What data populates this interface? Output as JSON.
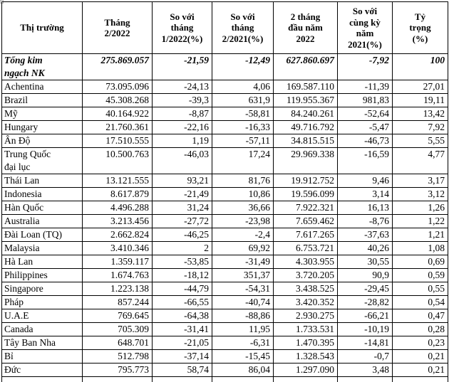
{
  "chart_data": {
    "type": "table",
    "title": "",
    "unit_note_hidden": "",
    "columns": [
      "Thị trường",
      "Tháng\n2/2022",
      "So với\ntháng\n1/2022(%)",
      "So với\ntháng\n2/2021(%)",
      "2 tháng\nđầu năm\n2022",
      "So với\ncùng kỳ\nnăm\n2021(%)",
      "Tỷ\ntrọng\n(%)"
    ],
    "rows": [
      {
        "market": "Tổng kim\nngạch NK",
        "emphasis": true,
        "values": [
          "275.869.057",
          "-21,59",
          "-12,49",
          "627.860.697",
          "-7,92",
          "100"
        ]
      },
      {
        "market": "Achentina",
        "values": [
          "73.095.096",
          "-24,13",
          "4,06",
          "169.587.110",
          "-11,39",
          "27,01"
        ]
      },
      {
        "market": "Brazil",
        "values": [
          "45.308.268",
          "-39,3",
          "631,9",
          "119.955.367",
          "981,83",
          "19,11"
        ]
      },
      {
        "market": "Mỹ",
        "values": [
          "40.164.922",
          "-8,87",
          "-58,81",
          "84.240.261",
          "-52,64",
          "13,42"
        ]
      },
      {
        "market": "Hungary",
        "values": [
          "21.760.361",
          "-22,16",
          "-16,33",
          "49.716.792",
          "-5,47",
          "7,92"
        ]
      },
      {
        "market": "Ân Độ",
        "values": [
          "17.510.555",
          "1,19",
          "-57,11",
          "34.815.515",
          "-46,73",
          "5,55"
        ]
      },
      {
        "market": "Trung Quốc\nđại lục",
        "values": [
          "10.500.763",
          "-46,03",
          "17,24",
          "29.969.338",
          "-16,59",
          "4,77"
        ]
      },
      {
        "market": "Thái Lan",
        "values": [
          "13.121.555",
          "93,21",
          "81,76",
          "19.912.752",
          "9,46",
          "3,17"
        ]
      },
      {
        "market": "Indonesia",
        "values": [
          "8.617.879",
          "-21,49",
          "10,86",
          "19.596.099",
          "3,14",
          "3,12"
        ]
      },
      {
        "market": "Hàn Quốc",
        "values": [
          "4.496.288",
          "31,24",
          "36,66",
          "7.922.321",
          "16,13",
          "1,26"
        ]
      },
      {
        "market": "Australia",
        "values": [
          "3.213.456",
          "-27,72",
          "-23,98",
          "7.659.462",
          "-8,76",
          "1,22"
        ]
      },
      {
        "market": "Đài Loan (TQ)",
        "values": [
          "2.662.824",
          "-46,25",
          "-2,4",
          "7.617.265",
          "-37,63",
          "1,21"
        ]
      },
      {
        "market": "Malaysia",
        "values": [
          "3.410.346",
          "2",
          "69,92",
          "6.753.721",
          "40,26",
          "1,08"
        ]
      },
      {
        "market": "Hà Lan",
        "values": [
          "1.359.117",
          "-53,85",
          "-31,49",
          "4.303.955",
          "30,55",
          "0,69"
        ]
      },
      {
        "market": "Philippines",
        "values": [
          "1.674.763",
          "-18,12",
          "351,37",
          "3.720.205",
          "90,9",
          "0,59"
        ]
      },
      {
        "market": "Singapore",
        "values": [
          "1.223.138",
          "-44,79",
          "-54,31",
          "3.438.525",
          "-29,45",
          "0,55"
        ]
      },
      {
        "market": "Pháp",
        "values": [
          "857.244",
          "-66,55",
          "-40,74",
          "3.420.352",
          "-28,82",
          "0,54"
        ]
      },
      {
        "market": "U.A.E",
        "values": [
          "769.645",
          "-64,38",
          "-88,86",
          "2.930.275",
          "-66,21",
          "0,47"
        ]
      },
      {
        "market": "Canada",
        "values": [
          "705.309",
          "-31,41",
          "11,95",
          "1.733.531",
          "-10,19",
          "0,28"
        ]
      },
      {
        "market": "Tây Ban Nha",
        "values": [
          "648.701",
          "-21,05",
          "-6,31",
          "1.470.395",
          "-14,81",
          "0,23"
        ]
      },
      {
        "market": "Bỉ",
        "values": [
          "512.798",
          "-37,14",
          "-15,45",
          "1.328.543",
          "-0,7",
          "0,21"
        ]
      },
      {
        "market": "Đức",
        "values": [
          "795.773",
          "58,74",
          "86,04",
          "1.297.090",
          "3,48",
          "0,21"
        ]
      }
    ]
  }
}
